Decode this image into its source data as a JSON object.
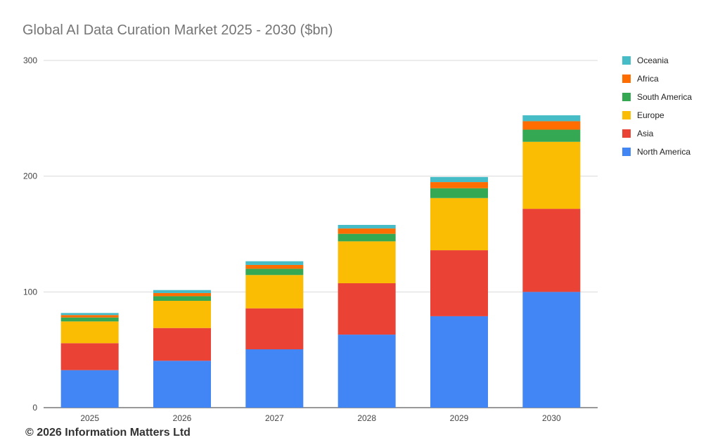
{
  "chart_data": {
    "type": "bar",
    "stacked": true,
    "title": "Global AI Data Curation Market 2025 - 2030 ($bn)",
    "xlabel": "",
    "ylabel": "",
    "ylim": [
      0,
      300
    ],
    "yticks": [
      0,
      100,
      200,
      300
    ],
    "grid": true,
    "legend_position": "right",
    "categories": [
      "2025",
      "2026",
      "2027",
      "2028",
      "2029",
      "2030"
    ],
    "series": [
      {
        "name": "North America",
        "color": "#4285F4",
        "values": [
          32.4,
          40.5,
          50.4,
          63.1,
          79.0,
          100.0
        ]
      },
      {
        "name": "Asia",
        "color": "#EA4335",
        "values": [
          23.3,
          28.3,
          35.4,
          44.4,
          57.0,
          71.8
        ]
      },
      {
        "name": "Europe",
        "color": "#FBBC04",
        "values": [
          18.8,
          23.5,
          28.8,
          36.2,
          45.1,
          57.9
        ]
      },
      {
        "name": "South America",
        "color": "#34A853",
        "values": [
          3.4,
          4.0,
          5.4,
          6.5,
          8.5,
          10.5
        ]
      },
      {
        "name": "Africa",
        "color": "#FF6D01",
        "values": [
          2.1,
          2.7,
          3.3,
          4.6,
          5.3,
          7.3
        ]
      },
      {
        "name": "Oceania",
        "color": "#46BDC6",
        "values": [
          1.8,
          2.6,
          3.2,
          3.1,
          4.4,
          5.1
        ]
      }
    ]
  },
  "footer": "© 2026 Information Matters Ltd"
}
